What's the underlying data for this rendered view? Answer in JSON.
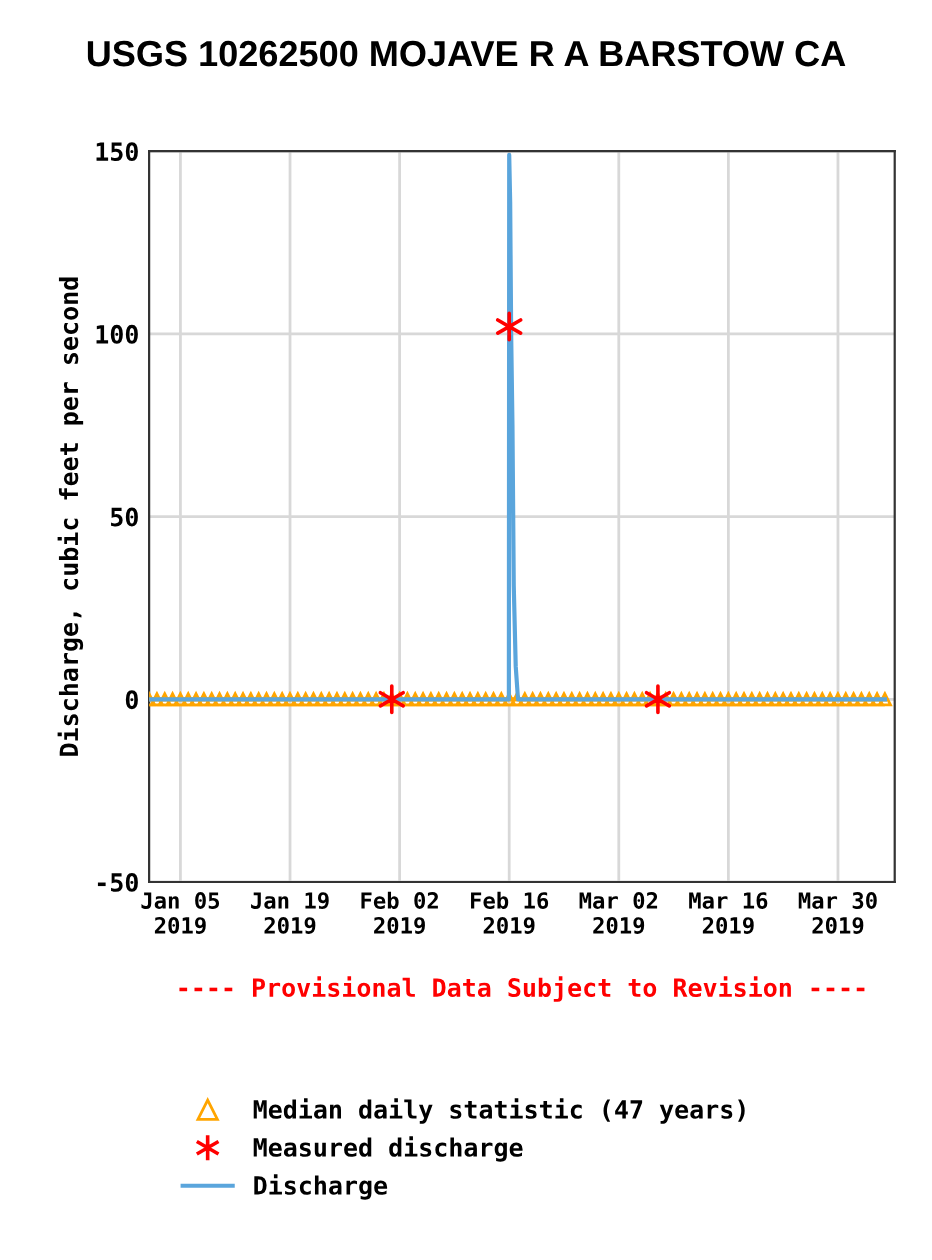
{
  "chart_data": {
    "type": "line",
    "title": "USGS 10262500 MOJAVE R A BARSTOW CA",
    "ylabel": "Discharge, cubic feet per second",
    "annotations": [
      "---- Provisional Data Subject to Revision ----"
    ],
    "ylim": [
      -50,
      150
    ],
    "yticks": [
      -50,
      0,
      50,
      100,
      150
    ],
    "xlim": [
      "2019-01-01",
      "2019-04-06T06:00"
    ],
    "xticks": [
      {
        "value": "2019-01-05",
        "label": "Jan 05\n2019"
      },
      {
        "value": "2019-01-19",
        "label": "Jan 19\n2019"
      },
      {
        "value": "2019-02-02",
        "label": "Feb 02\n2019"
      },
      {
        "value": "2019-02-16",
        "label": "Feb 16\n2019"
      },
      {
        "value": "2019-03-02",
        "label": "Mar 02\n2019"
      },
      {
        "value": "2019-03-16",
        "label": "Mar 16\n2019"
      },
      {
        "value": "2019-03-30",
        "label": "Mar 30\n2019"
      }
    ],
    "grid": true,
    "legend": "bottom",
    "series": [
      {
        "name": "Median daily statistic (47 years)",
        "marker": "triangle",
        "color": "#ffa500",
        "x": [
          "2019-01-01",
          "2019-01-02",
          "2019-01-03",
          "2019-01-04",
          "2019-01-05",
          "2019-01-06",
          "2019-01-07",
          "2019-01-08",
          "2019-01-09",
          "2019-01-10",
          "2019-01-11",
          "2019-01-12",
          "2019-01-13",
          "2019-01-14",
          "2019-01-15",
          "2019-01-16",
          "2019-01-17",
          "2019-01-18",
          "2019-01-19",
          "2019-01-20",
          "2019-01-21",
          "2019-01-22",
          "2019-01-23",
          "2019-01-24",
          "2019-01-25",
          "2019-01-26",
          "2019-01-27",
          "2019-01-28",
          "2019-01-29",
          "2019-01-30",
          "2019-01-31",
          "2019-02-01",
          "2019-02-02",
          "2019-02-03",
          "2019-02-04",
          "2019-02-05",
          "2019-02-06",
          "2019-02-07",
          "2019-02-08",
          "2019-02-09",
          "2019-02-10",
          "2019-02-11",
          "2019-02-12",
          "2019-02-13",
          "2019-02-14",
          "2019-02-15",
          "2019-02-16",
          "2019-02-17",
          "2019-02-18",
          "2019-02-19",
          "2019-02-20",
          "2019-02-21",
          "2019-02-22",
          "2019-02-23",
          "2019-02-24",
          "2019-02-25",
          "2019-02-26",
          "2019-02-27",
          "2019-02-28",
          "2019-03-01",
          "2019-03-02",
          "2019-03-03",
          "2019-03-04",
          "2019-03-05",
          "2019-03-06",
          "2019-03-07",
          "2019-03-08",
          "2019-03-09",
          "2019-03-10",
          "2019-03-11",
          "2019-03-12",
          "2019-03-13",
          "2019-03-14",
          "2019-03-15",
          "2019-03-16",
          "2019-03-17",
          "2019-03-18",
          "2019-03-19",
          "2019-03-20",
          "2019-03-21",
          "2019-03-22",
          "2019-03-23",
          "2019-03-24",
          "2019-03-25",
          "2019-03-26",
          "2019-03-27",
          "2019-03-28",
          "2019-03-29",
          "2019-03-30",
          "2019-03-31",
          "2019-04-01",
          "2019-04-02",
          "2019-04-03",
          "2019-04-04",
          "2019-04-05"
        ],
        "values": [
          0,
          0,
          0,
          0,
          0,
          0,
          0,
          0,
          0,
          0,
          0,
          0,
          0,
          0,
          0,
          0,
          0,
          0,
          0,
          0,
          0,
          0,
          0,
          0,
          0,
          0,
          0,
          0,
          0,
          0,
          0,
          0,
          0,
          0,
          0,
          0,
          0,
          0,
          0,
          0,
          0,
          0,
          0,
          0,
          0,
          0,
          0,
          0,
          0,
          0,
          0,
          0,
          0,
          0,
          0,
          0,
          0,
          0,
          0,
          0,
          0,
          0,
          0,
          0,
          0,
          0,
          0,
          0,
          0,
          0,
          0,
          0,
          0,
          0,
          0,
          0,
          0,
          0,
          0,
          0,
          0,
          0,
          0,
          0,
          0,
          0,
          0,
          0,
          0,
          0,
          0,
          0,
          0,
          0,
          0
        ]
      },
      {
        "name": "Measured discharge",
        "type": "scatter",
        "marker": "cross",
        "color": "#ff0000",
        "x": [
          "2019-02-01",
          "2019-02-16",
          "2019-03-07"
        ],
        "values": [
          0,
          102,
          0
        ]
      },
      {
        "name": "Discharge",
        "color": "#5aa5dc",
        "x": [
          "2019-01-01",
          "2019-02-15T23:00",
          "2019-02-16T00:00",
          "2019-02-16T03:00",
          "2019-02-16T06:00",
          "2019-02-16T10:00",
          "2019-02-16T14:00",
          "2019-02-16T20:00",
          "2019-02-17T03:00",
          "2019-04-05"
        ],
        "values": [
          0,
          0,
          149,
          136,
          100,
          75,
          31,
          9,
          0,
          0
        ]
      }
    ]
  }
}
